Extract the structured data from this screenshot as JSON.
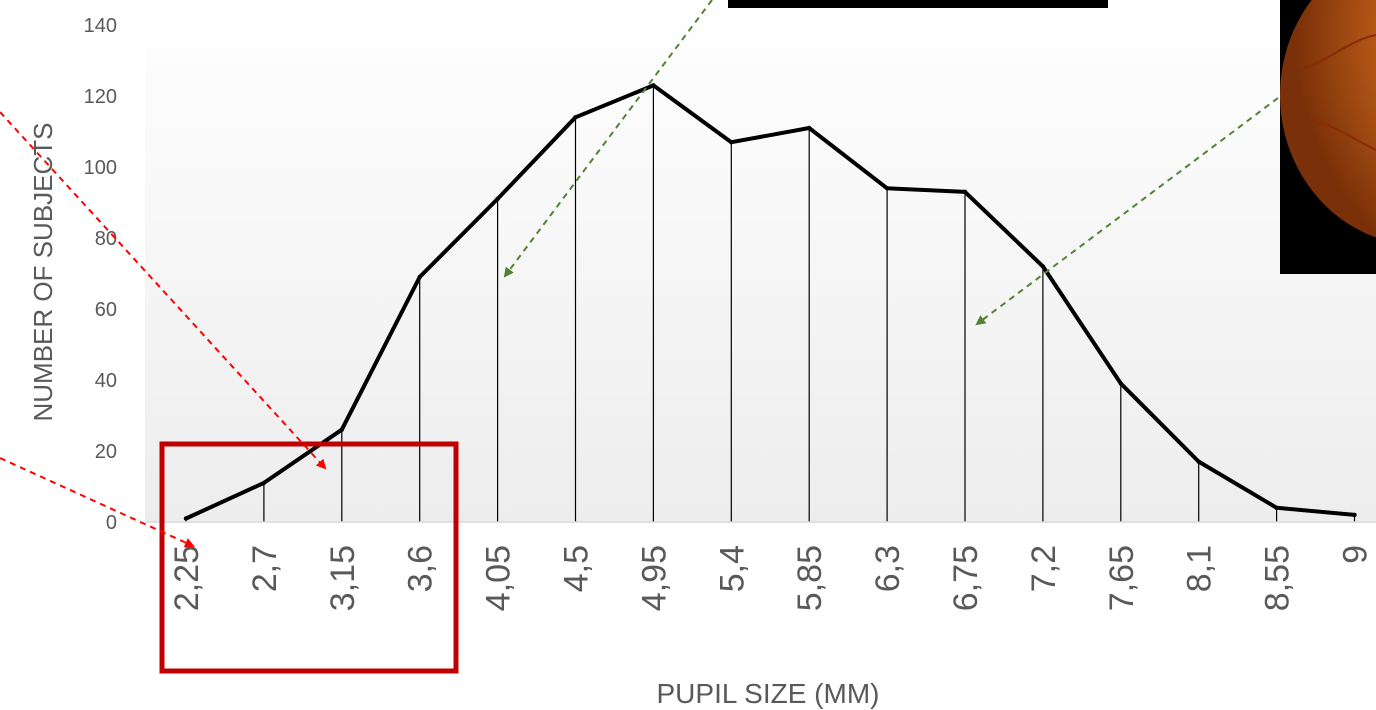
{
  "chart_data": {
    "type": "line",
    "xlabel": "PUPIL SIZE (MM)",
    "ylabel": "NUMBER OF SUBJECTS",
    "ylim": [
      0,
      140
    ],
    "yticks": [
      "0",
      "20",
      "40",
      "60",
      "80",
      "100",
      "120",
      "140"
    ],
    "categories": [
      "2,25",
      "2,7",
      "3,15",
      "3,6",
      "4,05",
      "4,5",
      "4,95",
      "5,4",
      "5,85",
      "6,3",
      "6,75",
      "7,2",
      "7,65",
      "8,1",
      "8,55",
      "9"
    ],
    "values": [
      1,
      11,
      26,
      69,
      91,
      114,
      123,
      107,
      111,
      94,
      93,
      72,
      39,
      17,
      4,
      2
    ],
    "drop_lines": true,
    "grid": false,
    "background_gradient": true,
    "annotations": {
      "highlight_box_color": "#c00000",
      "red_arrow_color": "#ff0000",
      "green_arrow_color": "#548235",
      "photo_colors": [
        "#c0601a",
        "#000000"
      ]
    }
  }
}
